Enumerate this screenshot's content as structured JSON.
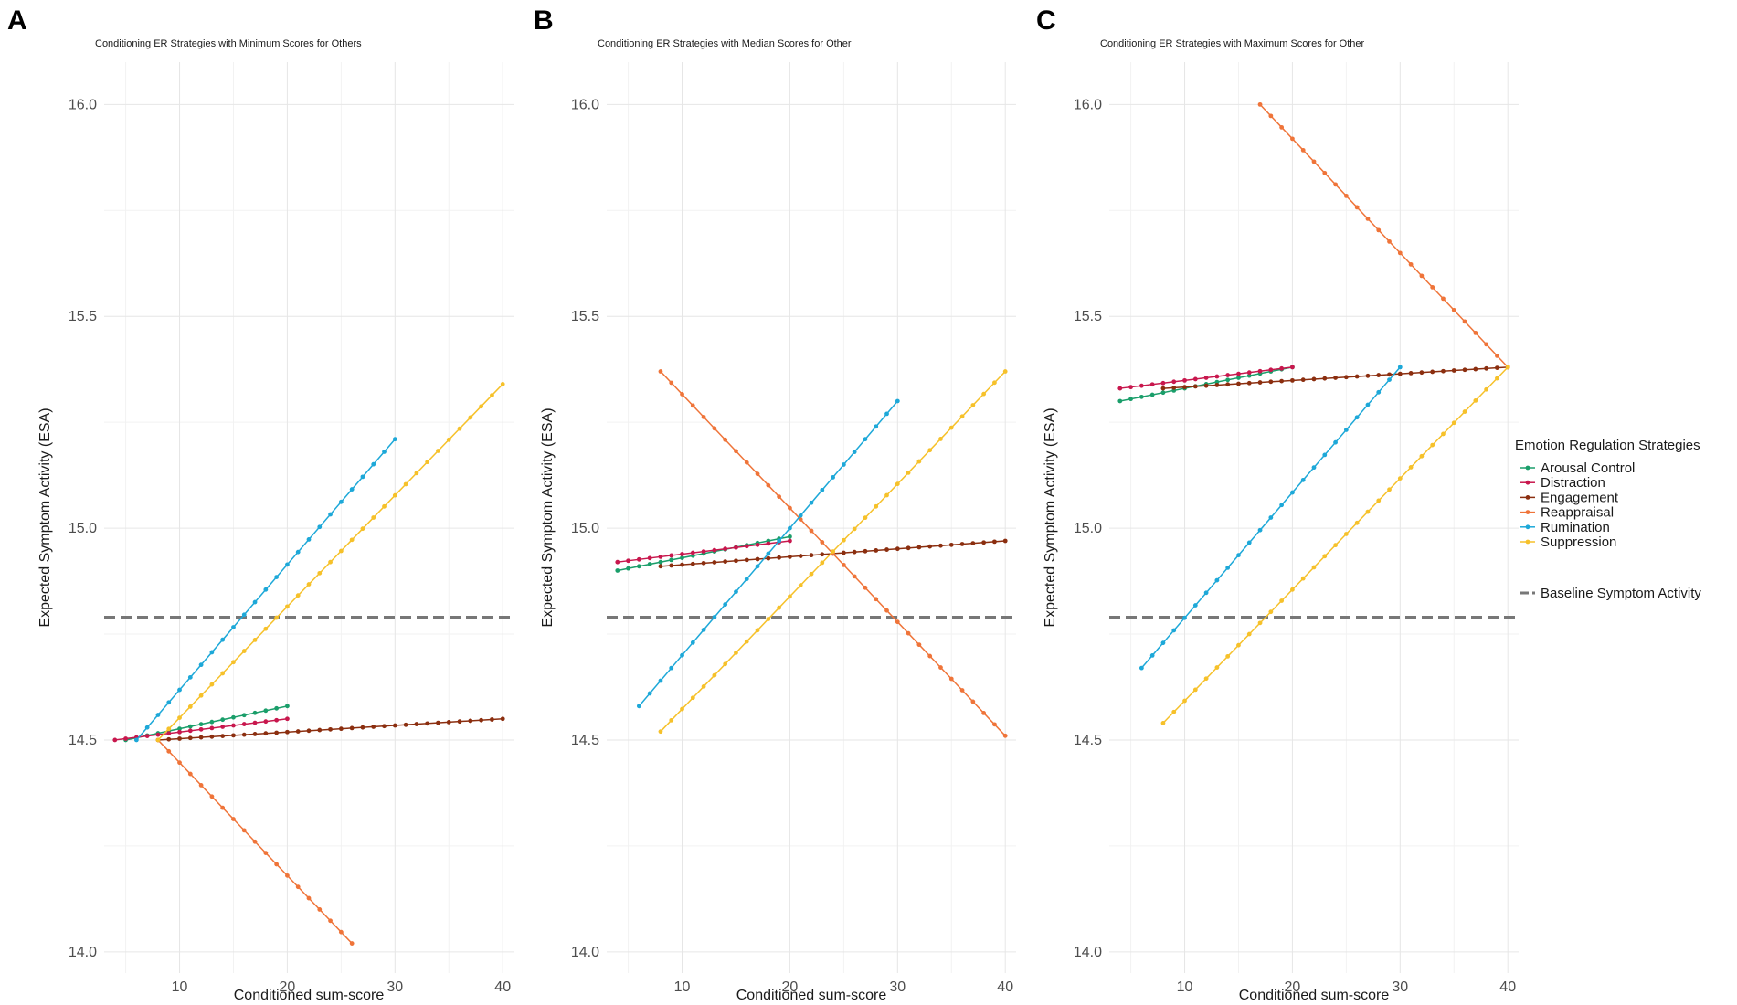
{
  "legend": {
    "title": "Emotion Regulation Strategies",
    "baseline_label": "Baseline Symptom Activity"
  },
  "colors": {
    "Arousal Control": "#1a9e6a",
    "Distraction": "#c8174d",
    "Engagement": "#8b2e0f",
    "Reappraisal": "#ef7439",
    "Rumination": "#1da8d8",
    "Suppression": "#f6c12a",
    "baseline": "#777777"
  },
  "chart_data": [
    {
      "type": "line",
      "letter": "A",
      "title": "Conditioning ER Strategies with Minimum Scores for Others",
      "xlabel": "Conditioned sum-score",
      "ylabel": "Expected Symptom Activity (ESA)",
      "xlim": [
        3,
        41
      ],
      "ylim": [
        13.95,
        16.1
      ],
      "xticks": [
        10,
        20,
        30,
        40
      ],
      "yticks": [
        14.0,
        14.5,
        15.0,
        15.5,
        16.0
      ],
      "ytick_labels": [
        "14.0",
        "14.5",
        "15.0",
        "15.5",
        "16.0"
      ],
      "baseline": 14.79,
      "series": [
        {
          "name": "Arousal Control",
          "x": [
            5,
            20
          ],
          "y": [
            14.5,
            14.58
          ]
        },
        {
          "name": "Distraction",
          "x": [
            4,
            20
          ],
          "y": [
            14.5,
            14.55
          ]
        },
        {
          "name": "Engagement",
          "x": [
            8,
            40
          ],
          "y": [
            14.5,
            14.55
          ]
        },
        {
          "name": "Reappraisal",
          "x": [
            8,
            26
          ],
          "y": [
            14.5,
            14.02
          ]
        },
        {
          "name": "Rumination",
          "x": [
            6,
            30
          ],
          "y": [
            14.5,
            15.21
          ]
        },
        {
          "name": "Suppression",
          "x": [
            8,
            40
          ],
          "y": [
            14.5,
            15.34
          ]
        }
      ]
    },
    {
      "type": "line",
      "letter": "B",
      "title": "Conditioning ER Strategies with Median Scores for Other",
      "xlabel": "Conditioned sum-score",
      "ylabel": "Expected Symptom Activity (ESA)",
      "xlim": [
        3,
        41
      ],
      "ylim": [
        13.95,
        16.1
      ],
      "xticks": [
        10,
        20,
        30,
        40
      ],
      "yticks": [
        14.0,
        14.5,
        15.0,
        15.5,
        16.0
      ],
      "ytick_labels": [
        "14.0",
        "14.5",
        "15.0",
        "15.5",
        "16.0"
      ],
      "baseline": 14.79,
      "series": [
        {
          "name": "Arousal Control",
          "x": [
            4,
            20
          ],
          "y": [
            14.9,
            14.98
          ]
        },
        {
          "name": "Distraction",
          "x": [
            4,
            20
          ],
          "y": [
            14.92,
            14.97
          ]
        },
        {
          "name": "Engagement",
          "x": [
            8,
            40
          ],
          "y": [
            14.91,
            14.97
          ]
        },
        {
          "name": "Reappraisal",
          "x": [
            8,
            40
          ],
          "y": [
            15.37,
            14.51
          ]
        },
        {
          "name": "Rumination",
          "x": [
            6,
            30
          ],
          "y": [
            14.58,
            15.3
          ]
        },
        {
          "name": "Suppression",
          "x": [
            8,
            40
          ],
          "y": [
            14.52,
            15.37
          ]
        }
      ]
    },
    {
      "type": "line",
      "letter": "C",
      "title": "Conditioning ER Strategies with Maximum Scores for Other",
      "xlabel": "Conditioned sum-score",
      "ylabel": "Expected Symptom Activity (ESA)",
      "xlim": [
        3,
        41
      ],
      "ylim": [
        13.95,
        16.1
      ],
      "xticks": [
        10,
        20,
        30,
        40
      ],
      "yticks": [
        14.0,
        14.5,
        15.0,
        15.5,
        16.0
      ],
      "ytick_labels": [
        "14.0",
        "14.5",
        "15.0",
        "15.5",
        "16.0"
      ],
      "baseline": 14.79,
      "series": [
        {
          "name": "Arousal Control",
          "x": [
            4,
            20
          ],
          "y": [
            15.3,
            15.38
          ]
        },
        {
          "name": "Distraction",
          "x": [
            4,
            20
          ],
          "y": [
            15.33,
            15.38
          ]
        },
        {
          "name": "Engagement",
          "x": [
            8,
            40
          ],
          "y": [
            15.33,
            15.38
          ]
        },
        {
          "name": "Reappraisal",
          "x": [
            17,
            40
          ],
          "y": [
            16.0,
            15.38
          ]
        },
        {
          "name": "Rumination",
          "x": [
            6,
            30
          ],
          "y": [
            14.67,
            15.38
          ]
        },
        {
          "name": "Suppression",
          "x": [
            8,
            40
          ],
          "y": [
            14.54,
            15.38
          ]
        }
      ]
    }
  ]
}
